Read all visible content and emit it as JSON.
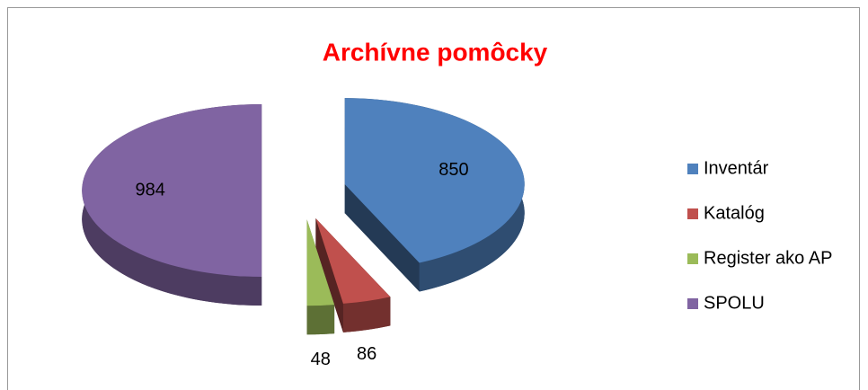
{
  "chart_data": {
    "type": "pie",
    "title": "Archívne pomôcky",
    "categories": [
      "Inventár",
      "Katalóg",
      "Register ako AP",
      "SPOLU"
    ],
    "values": [
      850,
      86,
      48,
      984
    ],
    "colors": [
      "#4f81bd",
      "#c0504d",
      "#9bbb59",
      "#8064a2"
    ],
    "legend": "right"
  }
}
